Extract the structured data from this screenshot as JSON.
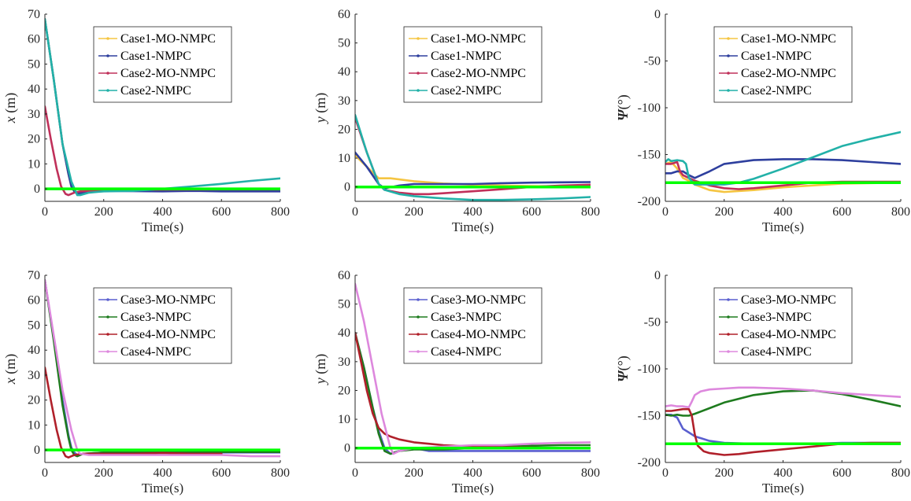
{
  "chart_data": [
    {
      "type": "line",
      "xlabel": "Time(s)",
      "ylabel": "x (m)",
      "ylabel_var": "x",
      "ylabel_unit": " (m)",
      "xlim": [
        0,
        800
      ],
      "ylim": [
        -5,
        70
      ],
      "xticks": [
        0,
        200,
        400,
        600,
        800
      ],
      "yticks": [
        0,
        10,
        20,
        30,
        40,
        50,
        60,
        70
      ],
      "legend": "top-center",
      "grid": false,
      "series": [
        {
          "name": "Case1-MO-NMPC",
          "color": "#f5c542",
          "x": [
            0,
            30,
            60,
            80,
            90,
            100,
            110,
            130,
            200,
            400,
            600,
            800
          ],
          "y": [
            68,
            44,
            18,
            6,
            1,
            -1,
            -2,
            -1,
            -0.5,
            -0.6,
            -0.6,
            -0.6
          ]
        },
        {
          "name": "Case1-NMPC",
          "color": "#2e3f9e",
          "x": [
            0,
            30,
            60,
            80,
            90,
            100,
            110,
            130,
            200,
            400,
            500,
            600,
            800
          ],
          "y": [
            68,
            44,
            18,
            6,
            1,
            -1,
            -2,
            -1.5,
            -0.8,
            -1,
            -0.8,
            -1,
            -1
          ]
        },
        {
          "name": "Case2-MO-NMPC",
          "color": "#c0305a",
          "x": [
            0,
            20,
            40,
            55,
            70,
            80,
            90,
            100,
            120,
            200,
            400,
            600,
            800
          ],
          "y": [
            33,
            20,
            8,
            1,
            -2,
            -2.5,
            -2,
            -1.5,
            -1,
            -0.5,
            -0.3,
            -0.2,
            -0.2
          ]
        },
        {
          "name": "Case2-NMPC",
          "color": "#22b1a8",
          "x": [
            0,
            30,
            60,
            90,
            110,
            120,
            150,
            200,
            300,
            400,
            500,
            600,
            700,
            800
          ],
          "y": [
            68,
            44,
            18,
            3,
            -2.5,
            -2.5,
            -1.5,
            -1,
            -0.8,
            0,
            1,
            2,
            3.2,
            4.2
          ]
        },
        {
          "name": "",
          "color": "#00ff00",
          "x": [
            0,
            800
          ],
          "y": [
            0,
            0
          ]
        }
      ]
    },
    {
      "type": "line",
      "xlabel": "Time(s)",
      "ylabel": "y (m)",
      "ylabel_var": "y",
      "ylabel_unit": " (m)",
      "xlim": [
        0,
        800
      ],
      "ylim": [
        -5,
        60
      ],
      "xticks": [
        0,
        200,
        400,
        600,
        800
      ],
      "yticks": [
        0,
        10,
        20,
        30,
        40,
        50,
        60
      ],
      "legend": "top-center",
      "grid": false,
      "series": [
        {
          "name": "Case1-MO-NMPC",
          "color": "#f5c542",
          "x": [
            0,
            40,
            80,
            100,
            120,
            200,
            300,
            400,
            500,
            600,
            700,
            800
          ],
          "y": [
            11,
            7,
            3,
            3,
            3,
            2,
            1.2,
            0.8,
            0.5,
            0.3,
            0.2,
            0.1
          ]
        },
        {
          "name": "Case1-NMPC",
          "color": "#2e3f9e",
          "x": [
            0,
            40,
            80,
            100,
            150,
            200,
            300,
            400,
            500,
            600,
            700,
            800
          ],
          "y": [
            12,
            7,
            1,
            -0.5,
            0.5,
            1,
            1,
            1,
            1.3,
            1.5,
            1.6,
            1.7
          ]
        },
        {
          "name": "Case2-MO-NMPC",
          "color": "#c0305a",
          "x": [
            0,
            40,
            80,
            100,
            150,
            200,
            250,
            300,
            400,
            500,
            600,
            700,
            800
          ],
          "y": [
            24,
            12,
            1,
            -1,
            -2,
            -2.5,
            -2.5,
            -2.2,
            -1.5,
            -0.8,
            0,
            0.5,
            0.8
          ]
        },
        {
          "name": "Case2-NMPC",
          "color": "#22b1a8",
          "x": [
            0,
            40,
            80,
            100,
            150,
            200,
            300,
            400,
            500,
            600,
            700,
            800
          ],
          "y": [
            25,
            12,
            1,
            -1,
            -2.5,
            -3.2,
            -4,
            -4.5,
            -4.5,
            -4.3,
            -4,
            -3.5
          ]
        },
        {
          "name": "",
          "color": "#00ff00",
          "x": [
            0,
            800
          ],
          "y": [
            0,
            0
          ]
        }
      ]
    },
    {
      "type": "line",
      "xlabel": "Time(s)",
      "ylabel": "Ψ(°)",
      "ylabel_var": "Ψ",
      "ylabel_unit": "(°)",
      "xlim": [
        0,
        800
      ],
      "ylim": [
        -200,
        0
      ],
      "xticks": [
        0,
        200,
        400,
        600,
        800
      ],
      "yticks": [
        -200,
        -150,
        -100,
        -50,
        0
      ],
      "legend": "top-center",
      "grid": false,
      "series": [
        {
          "name": "Case1-MO-NMPC",
          "color": "#f5c542",
          "x": [
            0,
            20,
            40,
            60,
            80,
            100,
            150,
            200,
            300,
            400,
            500,
            600,
            800
          ],
          "y": [
            -160,
            -158,
            -165,
            -175,
            -178,
            -182,
            -188,
            -190,
            -188,
            -185,
            -183,
            -181,
            -180
          ]
        },
        {
          "name": "Case1-NMPC",
          "color": "#2e3f9e",
          "x": [
            0,
            20,
            40,
            60,
            80,
            100,
            150,
            200,
            300,
            400,
            500,
            600,
            700,
            800
          ],
          "y": [
            -170,
            -170,
            -168,
            -168,
            -172,
            -175,
            -168,
            -160,
            -156,
            -155,
            -155,
            -156,
            -158,
            -160
          ]
        },
        {
          "name": "Case2-MO-NMPC",
          "color": "#c0305a",
          "x": [
            0,
            20,
            40,
            50,
            60,
            80,
            100,
            150,
            200,
            250,
            300,
            400,
            500,
            600,
            700,
            800
          ],
          "y": [
            -160,
            -160,
            -158,
            -168,
            -172,
            -175,
            -178,
            -183,
            -186,
            -187,
            -186,
            -183,
            -180,
            -179,
            -179,
            -179
          ]
        },
        {
          "name": "Case2-NMPC",
          "color": "#22b1a8",
          "x": [
            0,
            10,
            20,
            40,
            60,
            70,
            80,
            100,
            150,
            200,
            250,
            300,
            400,
            500,
            600,
            700,
            800
          ],
          "y": [
            -158,
            -155,
            -157,
            -156,
            -157,
            -160,
            -175,
            -182,
            -182,
            -182,
            -180,
            -176,
            -165,
            -153,
            -141,
            -133,
            -126
          ]
        },
        {
          "name": "",
          "color": "#00ff00",
          "x": [
            0,
            800
          ],
          "y": [
            -180,
            -180
          ]
        }
      ]
    },
    {
      "type": "line",
      "xlabel": "Time(s)",
      "ylabel": "x (m)",
      "ylabel_var": "x",
      "ylabel_unit": " (m)",
      "xlim": [
        0,
        800
      ],
      "ylim": [
        -5,
        70
      ],
      "xticks": [
        0,
        200,
        400,
        600,
        800
      ],
      "yticks": [
        0,
        10,
        20,
        30,
        40,
        50,
        60,
        70
      ],
      "legend": "top-center",
      "grid": false,
      "series": [
        {
          "name": "Case3-MO-NMPC",
          "color": "#5a5fcf",
          "x": [
            0,
            30,
            60,
            80,
            90,
            100,
            110,
            130,
            200,
            400,
            600,
            800
          ],
          "y": [
            68,
            45,
            20,
            6,
            1,
            -1,
            -2,
            -1.5,
            -1,
            -1,
            -1,
            -1
          ]
        },
        {
          "name": "Case3-NMPC",
          "color": "#1e7b1e",
          "x": [
            0,
            30,
            60,
            80,
            90,
            100,
            110,
            130,
            200,
            400,
            600,
            800
          ],
          "y": [
            68,
            44,
            18,
            5,
            0,
            -2,
            -2.5,
            -1.5,
            -1,
            -1,
            -0.8,
            -0.8
          ]
        },
        {
          "name": "Case4-MO-NMPC",
          "color": "#b0202a",
          "x": [
            0,
            20,
            40,
            55,
            70,
            80,
            90,
            100,
            130,
            200,
            300,
            400,
            500,
            600
          ],
          "y": [
            33,
            20,
            8,
            1,
            -2.5,
            -3,
            -2.5,
            -2,
            -1.5,
            -1.5,
            -1.5,
            -1.2,
            -1.5,
            -1.5
          ]
        },
        {
          "name": "Case4-NMPC",
          "color": "#dd88dd",
          "x": [
            0,
            30,
            60,
            90,
            110,
            120,
            150,
            200,
            300,
            400,
            500,
            600,
            700,
            800
          ],
          "y": [
            68,
            46,
            24,
            8,
            0,
            -1.5,
            -2,
            -2,
            -2,
            -2,
            -2,
            -2,
            -2.5,
            -2.5
          ]
        },
        {
          "name": "",
          "color": "#00ff00",
          "x": [
            0,
            800
          ],
          "y": [
            0,
            0
          ]
        }
      ]
    },
    {
      "type": "line",
      "xlabel": "Time(s)",
      "ylabel": "y (m)",
      "ylabel_var": "y",
      "ylabel_unit": " (m)",
      "xlim": [
        0,
        800
      ],
      "ylim": [
        -5,
        60
      ],
      "xticks": [
        0,
        200,
        400,
        600,
        800
      ],
      "yticks": [
        0,
        10,
        20,
        30,
        40,
        50,
        60
      ],
      "legend": "top-center",
      "grid": false,
      "series": [
        {
          "name": "Case3-MO-NMPC",
          "color": "#5a5fcf",
          "x": [
            0,
            30,
            60,
            80,
            100,
            120,
            150,
            200,
            250,
            300,
            400,
            600,
            800
          ],
          "y": [
            40,
            28,
            14,
            6,
            0,
            -2,
            -1,
            0,
            -1,
            -1,
            -1,
            -1,
            -1
          ]
        },
        {
          "name": "Case3-NMPC",
          "color": "#1e7b1e",
          "x": [
            0,
            30,
            60,
            80,
            100,
            120,
            150,
            200,
            300,
            400,
            500,
            600,
            700,
            800
          ],
          "y": [
            40,
            28,
            14,
            5,
            -1,
            -2,
            -1,
            -0.5,
            -0.5,
            0,
            0.5,
            0.8,
            1,
            1
          ]
        },
        {
          "name": "Case4-MO-NMPC",
          "color": "#b0202a",
          "x": [
            0,
            20,
            40,
            60,
            80,
            100,
            120,
            150,
            200,
            250,
            300,
            400,
            500,
            600,
            700,
            800
          ],
          "y": [
            40,
            30,
            20,
            12,
            7,
            5,
            4,
            3,
            2,
            1.5,
            1,
            0.5,
            0.3,
            0.2,
            0,
            0
          ]
        },
        {
          "name": "Case4-NMPC",
          "color": "#dd88dd",
          "x": [
            0,
            30,
            60,
            90,
            110,
            120,
            130,
            150,
            200,
            300,
            400,
            500,
            600,
            700,
            800
          ],
          "y": [
            57,
            44,
            28,
            12,
            4,
            0,
            -2,
            -1,
            0,
            0.5,
            1,
            1,
            1.5,
            1.8,
            2
          ]
        },
        {
          "name": "",
          "color": "#00ff00",
          "x": [
            0,
            800
          ],
          "y": [
            0,
            0
          ]
        }
      ]
    },
    {
      "type": "line",
      "xlabel": "Time(s)",
      "ylabel": "Ψ(°)",
      "ylabel_var": "Ψ",
      "ylabel_unit": "(°)",
      "xlim": [
        0,
        800
      ],
      "ylim": [
        -200,
        0
      ],
      "xticks": [
        0,
        200,
        400,
        600,
        800
      ],
      "yticks": [
        -200,
        -150,
        -100,
        -50,
        0
      ],
      "legend": "top-center",
      "grid": false,
      "series": [
        {
          "name": "Case3-MO-NMPC",
          "color": "#5a5fcf",
          "x": [
            0,
            20,
            40,
            60,
            80,
            100,
            150,
            200,
            300,
            400,
            500,
            600,
            700,
            800
          ],
          "y": [
            -149,
            -149,
            -152,
            -164,
            -168,
            -172,
            -177,
            -179,
            -180,
            -180,
            -180,
            -179,
            -179,
            -179
          ]
        },
        {
          "name": "Case3-NMPC",
          "color": "#1e7b1e",
          "x": [
            0,
            20,
            40,
            60,
            80,
            100,
            150,
            200,
            300,
            400,
            500,
            600,
            700,
            800
          ],
          "y": [
            -149,
            -150,
            -149,
            -150,
            -150,
            -148,
            -142,
            -136,
            -128,
            -124,
            -123,
            -127,
            -133,
            -140
          ]
        },
        {
          "name": "Case4-MO-NMPC",
          "color": "#b0202a",
          "x": [
            0,
            20,
            40,
            60,
            80,
            90,
            100,
            110,
            130,
            150,
            200,
            250,
            300,
            400,
            500,
            600,
            700,
            800
          ],
          "y": [
            -145,
            -145,
            -144,
            -143,
            -143,
            -150,
            -170,
            -182,
            -188,
            -190,
            -192,
            -191,
            -189,
            -186,
            -183,
            -180,
            -179,
            -179
          ]
        },
        {
          "name": "Case4-NMPC",
          "color": "#dd88dd",
          "x": [
            0,
            20,
            40,
            60,
            80,
            90,
            100,
            120,
            150,
            200,
            250,
            300,
            400,
            500,
            600,
            700,
            800
          ],
          "y": [
            -140,
            -139,
            -140,
            -140,
            -141,
            -135,
            -128,
            -124,
            -122,
            -121,
            -120,
            -120,
            -121,
            -123,
            -126,
            -128,
            -130
          ]
        },
        {
          "name": "",
          "color": "#00ff00",
          "x": [
            0,
            800
          ],
          "y": [
            -180,
            -180
          ]
        }
      ]
    }
  ]
}
